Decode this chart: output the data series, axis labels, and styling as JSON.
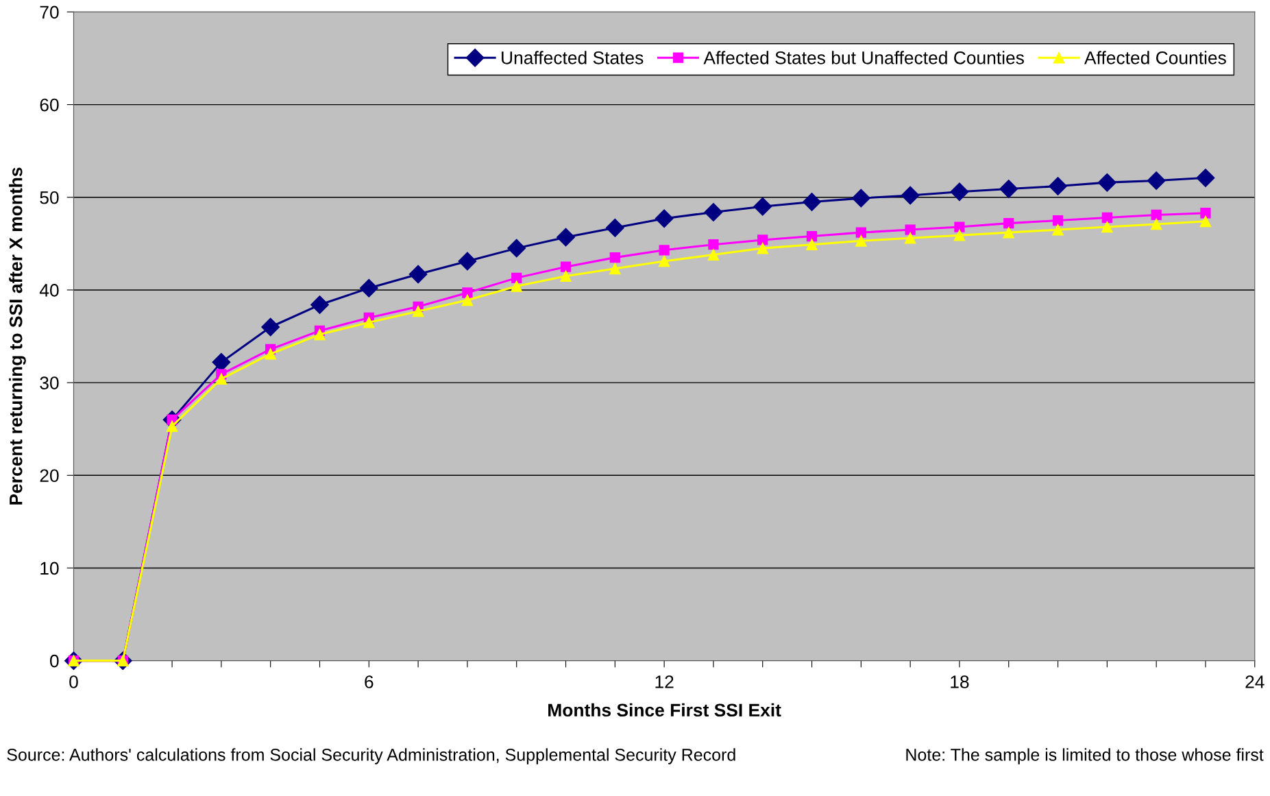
{
  "chart_data": {
    "type": "line",
    "xlabel": "Months Since First SSI Exit",
    "ylabel": "Percent returning to SSI after X months",
    "x": [
      0,
      1,
      2,
      3,
      4,
      5,
      6,
      7,
      8,
      9,
      10,
      11,
      12,
      13,
      14,
      15,
      16,
      17,
      18,
      19,
      20,
      21,
      22,
      23
    ],
    "series": [
      {
        "name": "Unaffected States",
        "color": "#000080",
        "marker": "diamond",
        "values": [
          0,
          0,
          26,
          32.2,
          36,
          38.4,
          40.2,
          41.7,
          43.1,
          44.5,
          45.7,
          46.7,
          47.7,
          48.4,
          49.0,
          49.5,
          49.9,
          50.2,
          50.6,
          50.9,
          51.2,
          51.6,
          51.8,
          52.1
        ]
      },
      {
        "name": "Affected States but Unaffected Counties",
        "color": "#ff00ff",
        "marker": "square",
        "values": [
          0,
          0,
          26,
          30.9,
          33.6,
          35.6,
          37.0,
          38.2,
          39.7,
          41.3,
          42.5,
          43.5,
          44.3,
          44.9,
          45.4,
          45.8,
          46.2,
          46.5,
          46.8,
          47.2,
          47.5,
          47.8,
          48.1,
          48.3
        ]
      },
      {
        "name": "Affected Counties",
        "color": "#ffff00",
        "marker": "triangle",
        "values": [
          0,
          0,
          25.3,
          30.4,
          33.1,
          35.2,
          36.5,
          37.7,
          38.9,
          40.4,
          41.5,
          42.3,
          43.1,
          43.8,
          44.5,
          44.9,
          45.3,
          45.6,
          45.9,
          46.2,
          46.5,
          46.8,
          47.1,
          47.4
        ]
      }
    ],
    "xlim": [
      0,
      24
    ],
    "xticks": [
      0,
      {
        "value": 1,
        "label": null
      },
      {
        "value": 2,
        "label": null
      },
      {
        "value": 3,
        "label": null
      },
      {
        "value": 4,
        "label": null
      },
      {
        "value": 5,
        "label": null
      },
      6,
      {
        "value": 7,
        "label": null
      },
      {
        "value": 8,
        "label": null
      },
      {
        "value": 9,
        "label": null
      },
      {
        "value": 10,
        "label": null
      },
      {
        "value": 11,
        "label": null
      },
      12,
      {
        "value": 13,
        "label": null
      },
      {
        "value": 14,
        "label": null
      },
      {
        "value": 15,
        "label": null
      },
      {
        "value": 16,
        "label": null
      },
      {
        "value": 17,
        "label": null
      },
      18,
      {
        "value": 19,
        "label": null
      },
      {
        "value": 20,
        "label": null
      },
      {
        "value": 21,
        "label": null
      },
      {
        "value": 22,
        "label": null
      },
      {
        "value": 23,
        "label": null
      },
      24
    ],
    "ylim": [
      0,
      70
    ],
    "yticks": [
      0,
      10,
      20,
      30,
      40,
      50,
      60,
      70
    ],
    "grid": "y",
    "legend": "top right",
    "line_style": "solid",
    "annotations": [
      "Source: Authors' calculations from Social Security Administration, Supplemental Security Record",
      "Note: The sample is limited to those whose first"
    ]
  }
}
